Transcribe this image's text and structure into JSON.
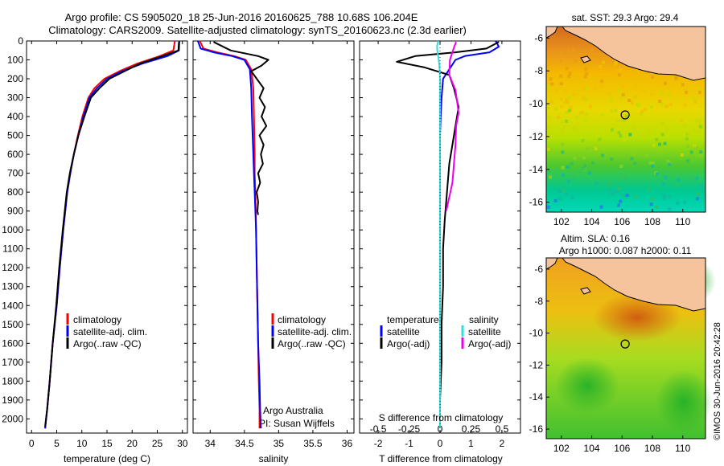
{
  "header": {
    "title_line1": "Argo profile: CS 5905020_18 25-Jun-2016 20160625_788 10.68S 106.204E",
    "title_line2": "Climatology: CARS2009. Satellite-adjusted climatology: synTS_20160623.nc (2.3d earlier)"
  },
  "credit": "©IMOS 30-Jun-2016 20:42:28",
  "colors": {
    "climatology": "#ff0000",
    "satellite_adj": "#0000ff",
    "argo": "#000000",
    "salinity_sat": "#33dddd",
    "salinity_argo": "#ee00ee",
    "land": "#f5c49c"
  },
  "chart_data": [
    {
      "id": "temperature",
      "type": "line",
      "xlabel": "temperature (deg C)",
      "ylabel": "",
      "xlim": [
        -1,
        31
      ],
      "ylim": [
        2075,
        0
      ],
      "xticks": [
        0,
        5,
        10,
        15,
        20,
        25,
        30
      ],
      "yticks": [
        0,
        100,
        200,
        300,
        400,
        500,
        600,
        700,
        800,
        900,
        1000,
        1100,
        1200,
        1300,
        1400,
        1500,
        1600,
        1700,
        1800,
        1900,
        2000
      ],
      "legend": [
        "climatology",
        "satellite-adj. clim.",
        "Argo(..raw -QC)"
      ],
      "series": [
        {
          "name": "climatology",
          "color": "#ff0000",
          "x": [
            28.5,
            28.2,
            25.5,
            21,
            17.5,
            14.5,
            12.5,
            11.3,
            10.1,
            9.2,
            8.4,
            7.7,
            7.1,
            6.3,
            5.6,
            5,
            4.2,
            3.6,
            3.1,
            2.7
          ],
          "y": [
            0,
            50,
            80,
            120,
            160,
            200,
            250,
            300,
            400,
            500,
            600,
            700,
            800,
            1000,
            1200,
            1400,
            1600,
            1800,
            1950,
            2050
          ]
        },
        {
          "name": "satellite-adj. clim.",
          "color": "#0000ff",
          "x": [
            29.4,
            29.3,
            27,
            22,
            18,
            15,
            13,
            11.5,
            10.3,
            9.3,
            8.4,
            7.7,
            7.1,
            6.3,
            5.6,
            5,
            4.2,
            3.6,
            3.1,
            2.7
          ],
          "y": [
            0,
            50,
            80,
            120,
            160,
            200,
            250,
            300,
            400,
            500,
            600,
            700,
            800,
            1000,
            1200,
            1400,
            1600,
            1800,
            1950,
            2050
          ]
        },
        {
          "name": "Argo(..raw -QC)",
          "color": "#000000",
          "x": [
            29.3,
            29.2,
            26,
            21.5,
            18.5,
            15.5,
            13.5,
            11.8,
            10.5,
            9.3,
            8.4,
            7.6,
            7,
            6.2,
            5.5,
            4.9,
            4.2,
            3.6,
            3.1,
            2.7
          ],
          "y": [
            5,
            50,
            80,
            120,
            160,
            200,
            250,
            300,
            400,
            500,
            600,
            700,
            800,
            1000,
            1200,
            1400,
            1600,
            1800,
            1950,
            2040
          ]
        }
      ]
    },
    {
      "id": "salinity",
      "type": "line",
      "xlabel": "salinity",
      "ylabel": "",
      "xlim": [
        33.75,
        36.1
      ],
      "ylim": [
        2075,
        0
      ],
      "xticks": [
        34,
        34.5,
        35,
        35.5,
        36
      ],
      "legend": [
        "climatology",
        "satellite-adj. clim.",
        "Argo(..raw -QC)"
      ],
      "annotation_lines": [
        "Argo Australia",
        "PI: Susan Wijffels"
      ],
      "series": [
        {
          "name": "climatology",
          "color": "#ff0000",
          "x": [
            33.85,
            33.9,
            34.1,
            34.35,
            34.52,
            34.6,
            34.63,
            34.64,
            34.65,
            34.65,
            34.66,
            34.67,
            34.68,
            34.69,
            34.7,
            34.71,
            34.72,
            34.72
          ],
          "y": [
            0,
            40,
            60,
            80,
            100,
            150,
            250,
            400,
            600,
            700,
            800,
            1000,
            1200,
            1400,
            1600,
            1800,
            1950,
            2050
          ]
        },
        {
          "name": "satellite-adj. clim.",
          "color": "#0000ff",
          "x": [
            33.82,
            33.86,
            34.05,
            34.32,
            34.5,
            34.58,
            34.6,
            34.61,
            34.63,
            34.64,
            34.65,
            34.67,
            34.68,
            34.69,
            34.7,
            34.72,
            34.73,
            34.74
          ],
          "y": [
            0,
            40,
            60,
            80,
            100,
            150,
            250,
            400,
            600,
            700,
            800,
            1000,
            1200,
            1400,
            1600,
            1800,
            1950,
            2050
          ]
        },
        {
          "name": "Argo(..raw -QC)",
          "color": "#000000",
          "x": [
            34.05,
            34.3,
            34.7,
            34.85,
            34.75,
            34.6,
            34.68,
            34.78,
            34.72,
            34.8,
            34.75,
            34.82,
            34.72,
            34.78,
            34.74,
            34.77,
            34.7,
            34.73,
            34.68,
            34.7,
            34.69,
            34.7
          ],
          "y": [
            5,
            50,
            80,
            100,
            130,
            160,
            200,
            250,
            300,
            350,
            400,
            450,
            500,
            550,
            600,
            650,
            700,
            750,
            800,
            850,
            900,
            920
          ]
        }
      ]
    },
    {
      "id": "difference",
      "type": "line",
      "xlabel": "T difference from climatology",
      "xlabel_top": "S difference from climatology",
      "ylabel": "",
      "xlim": [
        -2.6,
        2.6
      ],
      "ylim": [
        2075,
        0
      ],
      "xticks": [
        -2,
        -1,
        0,
        1,
        2
      ],
      "xticks_s": [
        -0.5,
        -0.25,
        0,
        0.25,
        0.5
      ],
      "xticks_s_labels": [
        "-0.5",
        "-0.25",
        "0",
        "0.25",
        "0.5"
      ],
      "legend_temperature": {
        "header": "temperature",
        "items": [
          "satellite",
          "Argo(-adj)"
        ]
      },
      "legend_salinity": {
        "header": "salinity",
        "items": [
          "satellite",
          "Argo(-adj)"
        ]
      },
      "series": [
        {
          "name": "temperature satellite",
          "color": "#0000ff",
          "x": [
            1.8,
            1.9,
            1.6,
            0.8,
            0.5,
            0.3,
            0.1,
            0.05,
            0.02,
            0,
            0,
            0
          ],
          "y": [
            0,
            30,
            60,
            80,
            100,
            150,
            200,
            300,
            400,
            500,
            700,
            900
          ]
        },
        {
          "name": "temperature Argo(-adj)",
          "color": "#000000",
          "x": [
            1.9,
            1.5,
            0.5,
            -0.8,
            -1.4,
            -0.5,
            0.3,
            0.45,
            0.6,
            0.5,
            0.4,
            0.3,
            0.25,
            0.2,
            0.15,
            0.1,
            0.1,
            0.05,
            0.05,
            0,
            0
          ],
          "y": [
            5,
            40,
            60,
            80,
            110,
            140,
            180,
            250,
            350,
            450,
            550,
            650,
            750,
            850,
            950,
            1100,
            1300,
            1500,
            1700,
            1900,
            2040
          ]
        },
        {
          "name": "salinity satellite",
          "color": "#33dddd",
          "x": [
            -0.06,
            -0.1,
            -0.08,
            -0.05,
            -0.02,
            0,
            0,
            0,
            0,
            0,
            0,
            0,
            0
          ],
          "y": [
            0,
            30,
            60,
            90,
            130,
            200,
            400,
            600,
            900,
            1200,
            1500,
            1800,
            2050
          ]
        },
        {
          "name": "salinity Argo(-adj)",
          "color": "#ee00ee",
          "x": [
            0.52,
            0.46,
            0.4,
            0.32,
            0.3,
            0.5,
            0.55,
            0.6,
            0.52,
            0.5,
            0.45,
            0.4,
            0.2
          ],
          "y": [
            5,
            30,
            60,
            100,
            180,
            260,
            320,
            380,
            450,
            550,
            650,
            750,
            900
          ]
        }
      ]
    },
    {
      "id": "sst_map",
      "type": "heatmap",
      "title": "sat. SST: 29.3 Argo: 29.4",
      "xlim": [
        101,
        111.5
      ],
      "ylim": [
        -16.6,
        -5.3
      ],
      "xticks": [
        102,
        104,
        106,
        108,
        110
      ],
      "yticks": [
        -6,
        -8,
        -10,
        -12,
        -14,
        -16
      ],
      "marker": {
        "lon": 106.204,
        "lat": -10.68
      },
      "colormap": "jet"
    },
    {
      "id": "sla_map",
      "type": "heatmap",
      "title_line1": "Altim. SLA: 0.16",
      "title_line2": "Argo h1000: 0.087 h2000: 0.11",
      "xlim": [
        101,
        111.5
      ],
      "ylim": [
        -16.6,
        -5.3
      ],
      "xticks": [
        102,
        104,
        106,
        108,
        110
      ],
      "yticks": [
        -6,
        -8,
        -10,
        -12,
        -14,
        -16
      ],
      "marker": {
        "lon": 106.204,
        "lat": -10.68
      },
      "colormap": "jet"
    }
  ]
}
